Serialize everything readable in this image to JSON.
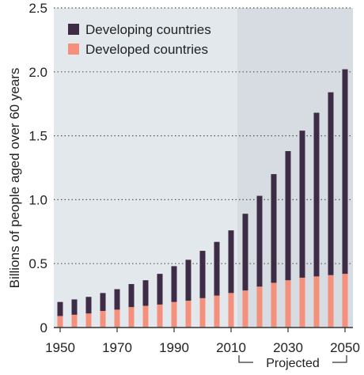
{
  "chart_data": {
    "type": "bar",
    "stacked": true,
    "ylabel": "Billions of people aged over 60 years",
    "ylim": [
      0,
      2.5
    ],
    "yticks": [
      "0",
      "0.5",
      "1.0",
      "1.5",
      "2.0",
      "2.5"
    ],
    "ytick_values": [
      0,
      0.5,
      1.0,
      1.5,
      2.0,
      2.5
    ],
    "xticks": [
      "1950",
      "1970",
      "1990",
      "2010",
      "2030",
      "2050"
    ],
    "xtick_values": [
      1950,
      1970,
      1990,
      2010,
      2030,
      2050
    ],
    "categories": [
      1950,
      1955,
      1960,
      1965,
      1970,
      1975,
      1980,
      1985,
      1990,
      1995,
      2000,
      2005,
      2010,
      2015,
      2020,
      2025,
      2030,
      2035,
      2040,
      2045,
      2050
    ],
    "series": [
      {
        "name": "Developed countries",
        "color": "#f4907b",
        "values": [
          0.09,
          0.1,
          0.11,
          0.13,
          0.14,
          0.16,
          0.17,
          0.18,
          0.2,
          0.21,
          0.23,
          0.25,
          0.27,
          0.29,
          0.32,
          0.35,
          0.37,
          0.39,
          0.4,
          0.41,
          0.42
        ]
      },
      {
        "name": "Developing countries",
        "color": "#3e2b45",
        "values": [
          0.11,
          0.12,
          0.13,
          0.14,
          0.16,
          0.18,
          0.2,
          0.24,
          0.28,
          0.32,
          0.37,
          0.42,
          0.49,
          0.6,
          0.71,
          0.85,
          1.01,
          1.15,
          1.28,
          1.43,
          1.6
        ]
      }
    ],
    "legend": {
      "position": "top-left",
      "order": [
        "Developing countries",
        "Developed countries"
      ]
    },
    "projected_from": 2015,
    "projected_label": "Projected",
    "grid": "dotted-horizontal",
    "colors": {
      "panel_background": "#e3e8ec",
      "projected_background": "#d6dce1",
      "grid": "#555555",
      "axis": "#333333",
      "text": "#222222"
    }
  }
}
